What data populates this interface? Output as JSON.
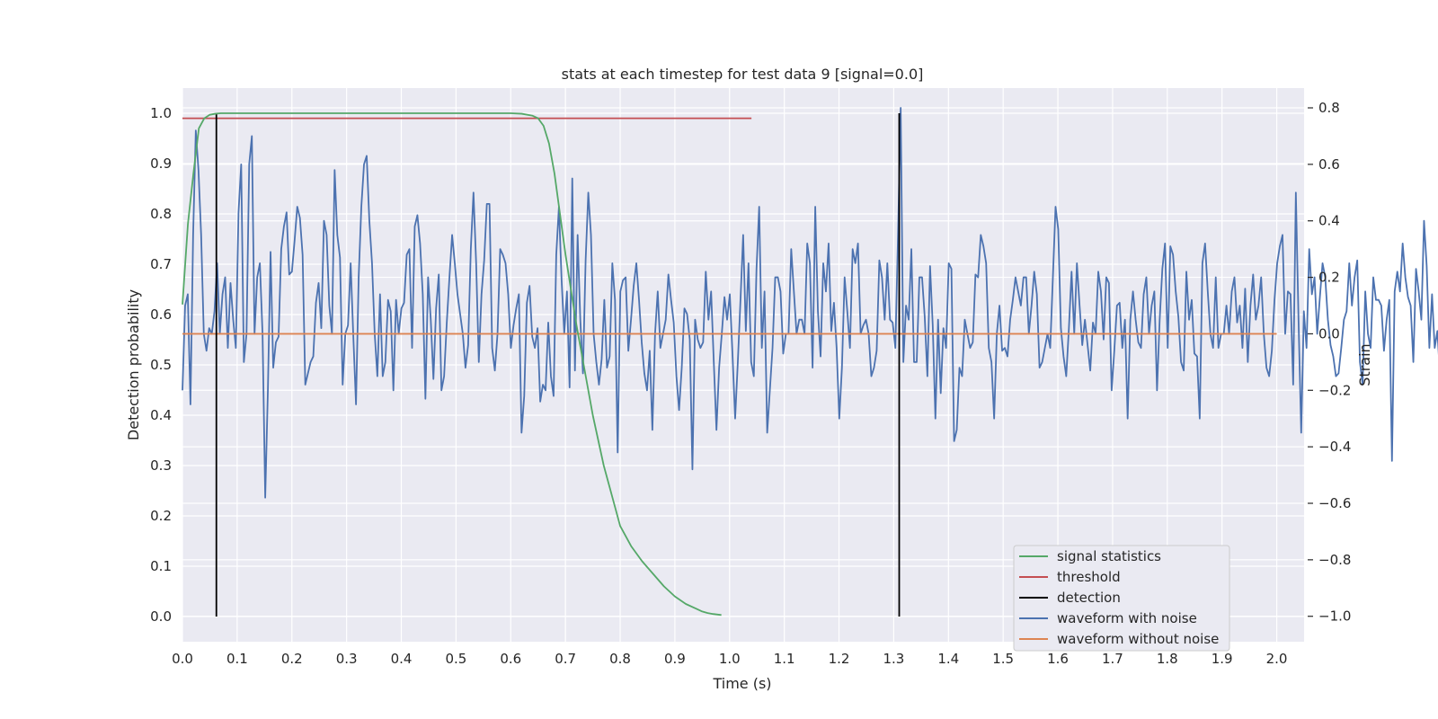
{
  "chart_data": {
    "type": "line",
    "title": "stats at each timestep for test data 9 [signal=0.0]",
    "xlabel": "Time (s)",
    "ylabel": "Detection probability",
    "y2label": "Strain",
    "xlim": [
      0.0,
      2.05
    ],
    "ylim": [
      -0.05,
      1.05
    ],
    "y2lim": [
      -1.09,
      0.87
    ],
    "x_ticks": [
      0.0,
      0.1,
      0.2,
      0.3,
      0.4,
      0.5,
      0.6,
      0.7,
      0.8,
      0.9,
      1.0,
      1.1,
      1.2,
      1.3,
      1.4,
      1.5,
      1.6,
      1.7,
      1.8,
      1.9,
      2.0
    ],
    "y_ticks": [
      0.0,
      0.1,
      0.2,
      0.3,
      0.4,
      0.5,
      0.6,
      0.7,
      0.8,
      0.9,
      1.0
    ],
    "y2_ticks": [
      -1.0,
      -0.8,
      -0.6,
      -0.4,
      -0.2,
      0.0,
      0.2,
      0.4,
      0.6,
      0.8
    ],
    "y2_tick_labels": [
      "−1.0",
      "−0.8",
      "−0.6",
      "−0.4",
      "−0.2",
      "0.0",
      "0.2",
      "0.4",
      "0.6",
      "0.8"
    ],
    "grid": true,
    "legend_position": "lower-right",
    "colors": {
      "background": "#eaeaf2",
      "grid": "#ffffff",
      "signal_statistics": "#55a868",
      "threshold": "#c44e52",
      "detection": "#000000",
      "waveform_with_noise": "#4c72b0",
      "waveform_without_noise": "#dd8452"
    },
    "series": [
      {
        "name": "signal statistics",
        "axis": "left",
        "x": [
          0.0,
          0.01,
          0.02,
          0.03,
          0.04,
          0.05,
          0.06,
          0.07,
          0.1,
          0.2,
          0.3,
          0.4,
          0.5,
          0.6,
          0.62,
          0.64,
          0.65,
          0.66,
          0.67,
          0.68,
          0.69,
          0.7,
          0.71,
          0.72,
          0.73,
          0.74,
          0.75,
          0.76,
          0.77,
          0.78,
          0.79,
          0.8,
          0.82,
          0.84,
          0.86,
          0.88,
          0.9,
          0.92,
          0.94,
          0.95,
          0.96,
          0.97,
          0.985
        ],
        "y": [
          0.62,
          0.78,
          0.88,
          0.97,
          0.99,
          0.997,
          0.999,
          1.0,
          1.0,
          1.0,
          1.0,
          1.0,
          1.0,
          1.0,
          0.999,
          0.995,
          0.99,
          0.975,
          0.94,
          0.88,
          0.8,
          0.72,
          0.65,
          0.58,
          0.52,
          0.46,
          0.4,
          0.35,
          0.3,
          0.26,
          0.22,
          0.18,
          0.14,
          0.11,
          0.085,
          0.06,
          0.04,
          0.025,
          0.015,
          0.01,
          0.007,
          0.005,
          0.003
        ]
      },
      {
        "name": "threshold",
        "axis": "left",
        "x": [
          0.0,
          1.04
        ],
        "y": [
          0.99,
          0.99
        ]
      },
      {
        "name": "detection",
        "axis": "left",
        "type": "vlines",
        "x": [
          0.062,
          1.31
        ],
        "ymin": 0.0,
        "ymax": 1.0
      },
      {
        "name": "waveform with noise",
        "axis": "right",
        "x_start": 0.0,
        "x_step": 0.00488,
        "y": [
          -0.2,
          0.1,
          0.14,
          -0.25,
          0.35,
          0.72,
          0.58,
          0.35,
          0.0,
          -0.06,
          0.02,
          0.0,
          0.08,
          0.25,
          0.0,
          0.14,
          0.2,
          -0.05,
          0.18,
          0.05,
          -0.05,
          0.43,
          0.6,
          -0.1,
          0.0,
          0.6,
          0.7,
          0.0,
          0.2,
          0.25,
          0.0,
          -0.58,
          -0.2,
          0.29,
          -0.12,
          -0.03,
          -0.01,
          0.3,
          0.38,
          0.43,
          0.21,
          0.22,
          0.33,
          0.45,
          0.41,
          0.28,
          -0.18,
          -0.14,
          -0.1,
          -0.08,
          0.11,
          0.18,
          0.02,
          0.4,
          0.35,
          0.1,
          0.0,
          0.58,
          0.35,
          0.27,
          -0.18,
          0.0,
          0.03,
          0.25,
          -0.01,
          -0.25,
          0.2,
          0.45,
          0.6,
          0.63,
          0.4,
          0.25,
          0.0,
          -0.15,
          0.14,
          -0.15,
          -0.1,
          0.12,
          0.08,
          -0.2,
          0.12,
          0.0,
          0.09,
          0.11,
          0.28,
          0.3,
          -0.05,
          0.38,
          0.42,
          0.32,
          0.14,
          -0.23,
          0.2,
          0.05,
          -0.16,
          0.09,
          0.21,
          -0.2,
          -0.15,
          0.04,
          0.2,
          0.35,
          0.25,
          0.14,
          0.07,
          0.0,
          -0.12,
          -0.04,
          0.3,
          0.5,
          0.25,
          -0.1,
          0.14,
          0.26,
          0.46,
          0.46,
          -0.05,
          -0.13,
          0.0,
          0.3,
          0.28,
          0.25,
          0.14,
          -0.05,
          0.03,
          0.09,
          0.14,
          -0.35,
          -0.22,
          0.11,
          0.17,
          -0.01,
          -0.05,
          0.02,
          -0.24,
          -0.18,
          -0.2,
          0.04,
          -0.15,
          -0.22,
          0.28,
          0.45,
          0.19,
          0.0,
          0.15,
          -0.19,
          0.55,
          -0.13,
          0.35,
          0.05,
          -0.14,
          0.26,
          0.5,
          0.35,
          0.0,
          -0.1,
          -0.18,
          -0.09,
          0.12,
          -0.12,
          -0.08,
          0.25,
          0.12,
          -0.42,
          0.15,
          0.19,
          0.2,
          -0.06,
          0.05,
          0.17,
          0.25,
          0.12,
          -0.03,
          -0.14,
          -0.2,
          -0.06,
          -0.34,
          0.0,
          0.15,
          -0.05,
          0.0,
          0.05,
          0.21,
          0.12,
          0.04,
          -0.15,
          -0.27,
          -0.12,
          0.09,
          0.07,
          -0.02,
          -0.48,
          0.05,
          -0.02,
          -0.05,
          -0.03,
          0.22,
          0.05,
          0.15,
          -0.1,
          -0.34,
          -0.12,
          0.0,
          0.13,
          0.05,
          0.14,
          -0.07,
          -0.3,
          -0.1,
          0.12,
          0.35,
          0.01,
          0.25,
          -0.1,
          -0.15,
          0.23,
          0.45,
          -0.05,
          0.15,
          -0.35,
          -0.2,
          -0.05,
          0.2,
          0.2,
          0.15,
          -0.07,
          0.0,
          0.0,
          0.3,
          0.15,
          0.0,
          0.05,
          0.05,
          0.0,
          0.32,
          0.25,
          -0.12,
          0.45,
          0.08,
          -0.08,
          0.25,
          0.15,
          0.32,
          0.01,
          0.11,
          -0.05,
          -0.3,
          -0.12,
          0.2,
          0.08,
          -0.05,
          0.3,
          0.25,
          0.32,
          0.0,
          0.03,
          0.05,
          0.0,
          -0.15,
          -0.12,
          -0.06,
          0.26,
          0.2,
          0.05,
          0.25,
          0.05,
          0.04,
          -0.05,
          0.35,
          0.8,
          -0.1,
          0.1,
          0.05,
          0.3,
          -0.1,
          -0.1,
          0.2,
          0.2,
          0.06,
          -0.15,
          0.24,
          0.03,
          -0.3,
          0.05,
          -0.21,
          0.02,
          -0.05,
          0.25,
          0.23,
          -0.38,
          -0.34,
          -0.12,
          -0.15,
          0.05,
          0.0,
          -0.05,
          -0.03,
          0.21,
          0.2,
          0.35,
          0.31,
          0.25,
          -0.05,
          -0.1,
          -0.3,
          0.0,
          0.1,
          -0.06,
          -0.05,
          -0.08,
          0.05,
          0.12,
          0.2,
          0.15,
          0.1,
          0.2,
          0.2,
          0.0,
          0.1,
          0.22,
          0.14,
          -0.12,
          -0.1,
          -0.05,
          0.0,
          -0.05,
          0.2,
          0.45,
          0.37,
          0.02,
          -0.08,
          -0.15,
          0.02,
          0.22,
          0.0,
          0.25,
          0.1,
          -0.04,
          0.05,
          -0.04,
          -0.13,
          0.04,
          0.0,
          0.22,
          0.15,
          -0.02,
          0.2,
          0.18,
          -0.2,
          -0.06,
          0.1,
          0.11,
          -0.05,
          0.05,
          -0.3,
          0.05,
          0.15,
          0.05,
          -0.03,
          -0.05,
          0.14,
          0.2,
          0.0,
          0.1,
          0.15,
          -0.2,
          0.05,
          0.23,
          0.32,
          -0.05,
          0.31,
          0.28,
          0.15,
          0.06,
          -0.1,
          -0.13,
          0.22,
          0.05,
          0.12,
          -0.07,
          -0.08,
          -0.3,
          0.25,
          0.32,
          0.15,
          0.0,
          -0.05,
          0.2,
          -0.05,
          0.0,
          0.0,
          0.1,
          0.0,
          0.15,
          0.2,
          0.04,
          0.1,
          -0.05,
          0.16,
          -0.1,
          0.1,
          0.21,
          0.05,
          0.1,
          0.2,
          0.0,
          -0.12,
          -0.15,
          -0.06,
          0.12,
          0.25,
          0.31,
          0.35,
          0.0,
          0.15,
          0.14,
          -0.18,
          0.5,
          0.05,
          -0.35,
          0.08,
          -0.05,
          0.3,
          0.14,
          0.2,
          0.0,
          0.13,
          0.25,
          0.2,
          0.05,
          -0.04,
          -0.08,
          -0.15,
          -0.14,
          -0.05,
          0.05,
          0.08,
          0.25,
          0.1,
          0.2,
          0.26,
          -0.1,
          -0.18,
          0.15,
          0.0,
          -0.05,
          0.2,
          0.12,
          0.12,
          0.1,
          -0.06,
          0.05,
          0.12,
          -0.45,
          0.15,
          0.22,
          0.15,
          0.32,
          0.2,
          0.13,
          0.1,
          -0.1,
          0.23,
          0.15,
          0.05,
          0.4,
          0.24,
          -0.05,
          0.14,
          -0.05,
          0.01,
          -0.15,
          -0.35,
          0.05,
          0.25,
          -0.1,
          0.3,
          0.37,
          0.5,
          0.1,
          -0.1,
          -0.26,
          -0.18,
          -0.22,
          -0.15,
          -0.12,
          -0.2,
          -0.15,
          0.2,
          -0.18,
          0.0,
          -0.3,
          0.2,
          0.3
        ]
      },
      {
        "name": "waveform without noise",
        "axis": "right",
        "x": [
          0.0,
          2.0
        ],
        "y": [
          0.0,
          0.0
        ]
      }
    ]
  }
}
